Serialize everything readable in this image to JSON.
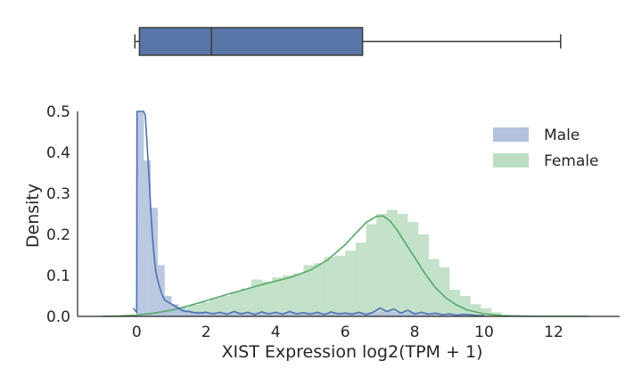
{
  "chart_data": [
    {
      "type": "box",
      "orientation": "horizontal",
      "shares_x_axis_with": "density",
      "whisker_low": -0.05,
      "q1": 0.08,
      "median": 2.15,
      "q3": 6.5,
      "whisker_high": 12.2,
      "color": "#5975a8",
      "edge_color": "#3b3b3b",
      "grid": false
    },
    {
      "type": "histogram-kde",
      "xlabel": "XIST Expression log2(TPM + 1)",
      "ylabel": "Density",
      "xlim": [
        -1.7,
        13.9
      ],
      "ylim": [
        0,
        0.5
      ],
      "xticks": [
        0,
        2,
        4,
        6,
        8,
        10,
        12
      ],
      "yticks": [
        "0.0",
        "0.1",
        "0.2",
        "0.3",
        "0.4",
        "0.5"
      ],
      "grid": false,
      "legend_position": "top-right",
      "series": [
        {
          "name": "Male",
          "color": "#4c72b0",
          "fill": "#b2c2de",
          "hist_bin_width": 0.2,
          "hist_x": [
            0.0,
            0.2,
            0.4,
            0.6,
            0.8,
            1.0,
            1.2,
            1.4,
            1.6,
            1.8,
            2.0,
            2.2,
            2.4,
            2.6,
            2.8,
            3.0,
            3.2,
            3.4,
            3.6,
            3.8,
            4.0,
            4.2,
            4.4,
            4.6,
            4.8,
            5.0,
            5.2,
            5.4,
            5.6,
            5.8,
            6.0,
            6.2,
            6.4,
            6.6,
            6.8,
            7.0,
            7.2,
            7.4,
            7.6,
            7.8,
            8.0,
            8.2,
            8.4,
            8.6,
            8.8,
            9.0,
            9.2,
            9.4,
            9.6,
            9.8
          ],
          "hist_y": [
            0.5,
            0.38,
            0.265,
            0.125,
            0.05,
            0.03,
            0.02,
            0.015,
            0.012,
            0.012,
            0.01,
            0.01,
            0.01,
            0.01,
            0.01,
            0.01,
            0.01,
            0.01,
            0.01,
            0.01,
            0.01,
            0.01,
            0.01,
            0.01,
            0.01,
            0.01,
            0.01,
            0.01,
            0.01,
            0.01,
            0.01,
            0.01,
            0.01,
            0.01,
            0.01,
            0.012,
            0.012,
            0.01,
            0.01,
            0.01,
            0.01,
            0.01,
            0.008,
            0.006,
            0.006,
            0.005,
            0.004,
            0.003,
            0.003,
            0.002
          ],
          "kde_x": [
            -0.1,
            -0.05,
            0.0,
            0.01,
            0.02,
            0.04,
            0.06,
            0.08,
            0.1,
            0.12,
            0.14,
            0.16,
            0.18,
            0.2,
            0.25,
            0.3,
            0.35,
            0.4,
            0.45,
            0.5,
            0.55,
            0.6,
            0.65,
            0.7,
            0.75,
            0.8,
            0.9,
            1.0,
            1.1,
            1.2,
            1.3,
            1.4,
            1.5,
            1.6,
            1.8,
            2.0,
            2.2,
            2.4,
            2.6,
            2.8,
            3.0,
            3.2,
            3.4,
            3.6,
            3.8,
            4.0,
            4.2,
            4.4,
            4.6,
            4.8,
            5.0,
            5.2,
            5.4,
            5.6,
            5.8,
            6.0,
            6.2,
            6.4,
            6.6,
            6.8,
            7.0,
            7.2,
            7.4,
            7.6,
            7.8,
            8.0,
            8.2,
            8.4,
            8.6,
            8.8,
            9.0,
            9.2,
            9.4,
            9.6,
            9.8,
            10.0
          ],
          "kde_y": [
            0.02,
            0.015,
            0.01,
            0.5,
            0.5,
            0.5,
            0.5,
            0.5,
            0.5,
            0.5,
            0.5,
            0.5,
            0.5,
            0.5,
            0.49,
            0.42,
            0.35,
            0.27,
            0.2,
            0.15,
            0.11,
            0.09,
            0.075,
            0.06,
            0.05,
            0.04,
            0.035,
            0.03,
            0.025,
            0.02,
            0.015,
            0.012,
            0.012,
            0.01,
            0.008,
            0.01,
            0.006,
            0.01,
            0.005,
            0.012,
            0.006,
            0.01,
            0.004,
            0.011,
            0.006,
            0.01,
            0.005,
            0.012,
            0.006,
            0.009,
            0.005,
            0.01,
            0.004,
            0.011,
            0.006,
            0.008,
            0.005,
            0.01,
            0.004,
            0.01,
            0.02,
            0.012,
            0.018,
            0.008,
            0.015,
            0.006,
            0.01,
            0.005,
            0.008,
            0.004,
            0.006,
            0.003,
            0.005,
            0.004,
            0.002,
            0.002
          ]
        },
        {
          "name": "Female",
          "color": "#55a868",
          "fill": "#bcdfc3",
          "hist_bin_width": 0.3,
          "hist_x": [
            0.0,
            0.3,
            0.6,
            0.9,
            1.2,
            1.5,
            1.8,
            2.1,
            2.4,
            2.7,
            3.0,
            3.3,
            3.6,
            3.9,
            4.2,
            4.5,
            4.8,
            5.1,
            5.4,
            5.7,
            6.0,
            6.3,
            6.6,
            6.9,
            7.2,
            7.5,
            7.8,
            8.1,
            8.4,
            8.7,
            9.0,
            9.3,
            9.6,
            9.9,
            10.2
          ],
          "hist_y": [
            0.0,
            0.01,
            0.01,
            0.015,
            0.022,
            0.028,
            0.035,
            0.045,
            0.05,
            0.06,
            0.068,
            0.09,
            0.085,
            0.095,
            0.1,
            0.105,
            0.125,
            0.13,
            0.145,
            0.148,
            0.16,
            0.18,
            0.225,
            0.25,
            0.26,
            0.25,
            0.23,
            0.2,
            0.14,
            0.12,
            0.065,
            0.05,
            0.03,
            0.02,
            0.01
          ],
          "kde_x": [
            -1.0,
            -0.5,
            0.0,
            0.5,
            1.0,
            1.5,
            2.0,
            2.5,
            3.0,
            3.5,
            4.0,
            4.5,
            5.0,
            5.5,
            6.0,
            6.3,
            6.6,
            6.9,
            7.1,
            7.3,
            7.5,
            7.7,
            8.0,
            8.3,
            8.6,
            8.9,
            9.2,
            9.5,
            10.0,
            10.5,
            11.0,
            11.5,
            12.0,
            12.5,
            13.0
          ],
          "kde_y": [
            0.0,
            0.001,
            0.003,
            0.008,
            0.015,
            0.026,
            0.038,
            0.051,
            0.063,
            0.075,
            0.086,
            0.097,
            0.113,
            0.138,
            0.175,
            0.202,
            0.229,
            0.244,
            0.245,
            0.232,
            0.21,
            0.183,
            0.144,
            0.104,
            0.07,
            0.045,
            0.028,
            0.016,
            0.006,
            0.002,
            0.001,
            0.0,
            0.0,
            0.0,
            0.0
          ]
        }
      ]
    }
  ]
}
